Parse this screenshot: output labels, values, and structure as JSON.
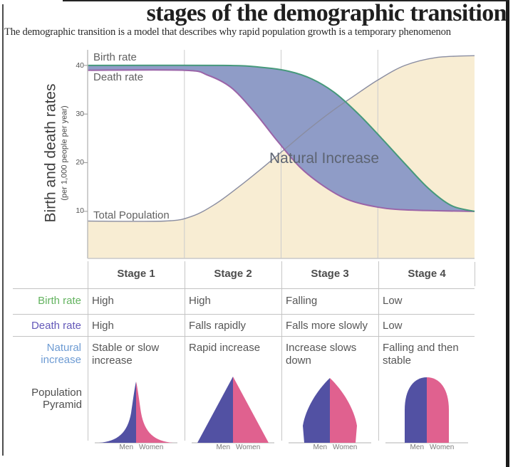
{
  "title": "stages of the demographic transition",
  "subtitle": "The demographic transition is a model that describes why rapid population growth is a temporary phenomenon",
  "chart": {
    "y_axis_title": "Birth and death rates",
    "y_axis_unit": "(per 1,000 people per year)",
    "y_ticks": [
      "40",
      "30",
      "20",
      "10"
    ],
    "birth_label": "Birth rate",
    "death_label": "Death rate",
    "population_label": "Total Population",
    "natural_label": "Natural Increase"
  },
  "chart_data": {
    "type": "area",
    "x_categories": [
      "Stage 1",
      "Stage 2",
      "Stage 3",
      "Stage 4"
    ],
    "x_range_pct": [
      0,
      100
    ],
    "stage_boundaries_x_pct": [
      25,
      50,
      75
    ],
    "ylim": [
      0,
      43
    ],
    "ylabel": "Birth and death rates (per 1,000 people per year)",
    "grid": "vertical lines at stage boundaries",
    "annotation": "Natural Increase (shaded area between birth and death rates)",
    "series": [
      {
        "name": "Birth rate",
        "color": "#46997b",
        "x": [
          0,
          35,
          45,
          52,
          58,
          64,
          70,
          76,
          82,
          88,
          94,
          100
        ],
        "values": [
          40,
          40,
          39.6,
          38.8,
          37.2,
          34.3,
          30,
          25,
          19.8,
          14.8,
          11.2,
          10
        ]
      },
      {
        "name": "Death rate",
        "color": "#9a64a8",
        "x": [
          0,
          25,
          31,
          37,
          43,
          49,
          55,
          61,
          67,
          74,
          82,
          100
        ],
        "values": [
          39,
          39,
          38,
          35.5,
          30.5,
          24.5,
          19,
          15.2,
          12.5,
          11,
          10.3,
          10
        ]
      },
      {
        "name": "Total population",
        "color": "#8a8da1",
        "x": [
          0,
          20,
          27,
          33,
          39,
          45,
          51,
          57,
          63,
          69,
          75,
          82,
          90,
          100
        ],
        "values": [
          8,
          8,
          9,
          11.5,
          15,
          18.8,
          22.8,
          26.8,
          30.5,
          33.8,
          37,
          40,
          41.6,
          42
        ]
      }
    ]
  },
  "table": {
    "columns": [
      "Stage 1",
      "Stage 2",
      "Stage 3",
      "Stage 4"
    ],
    "rows": [
      {
        "label": "Birth rate",
        "cells": [
          "High",
          "High",
          "Falling",
          "Low"
        ]
      },
      {
        "label": "Death rate",
        "cells": [
          "High",
          "Falls rapidly",
          "Falls more slowly",
          "Low"
        ]
      },
      {
        "label": "Natural increase",
        "cells": [
          "Stable or slow increase",
          "Rapid increase",
          "Increase slows down",
          "Falling and then stable"
        ]
      }
    ],
    "pyramid_row_label": "Population Pyramid",
    "men": "Men",
    "women": "Women"
  },
  "colors": {
    "birth-line": "#46997b",
    "death-line": "#9a64a8",
    "population-line": "#8a8da1",
    "natural-fill": "#8f9cc7",
    "population-fill": "#f8edd3",
    "grid-line": "#cccccc",
    "birth-label": "#63b35f",
    "death-label": "#6459b9",
    "natural-label": "#6d9bd3",
    "pyramid-blue": "#5251a3",
    "pyramid-pink": "#e0618f"
  }
}
